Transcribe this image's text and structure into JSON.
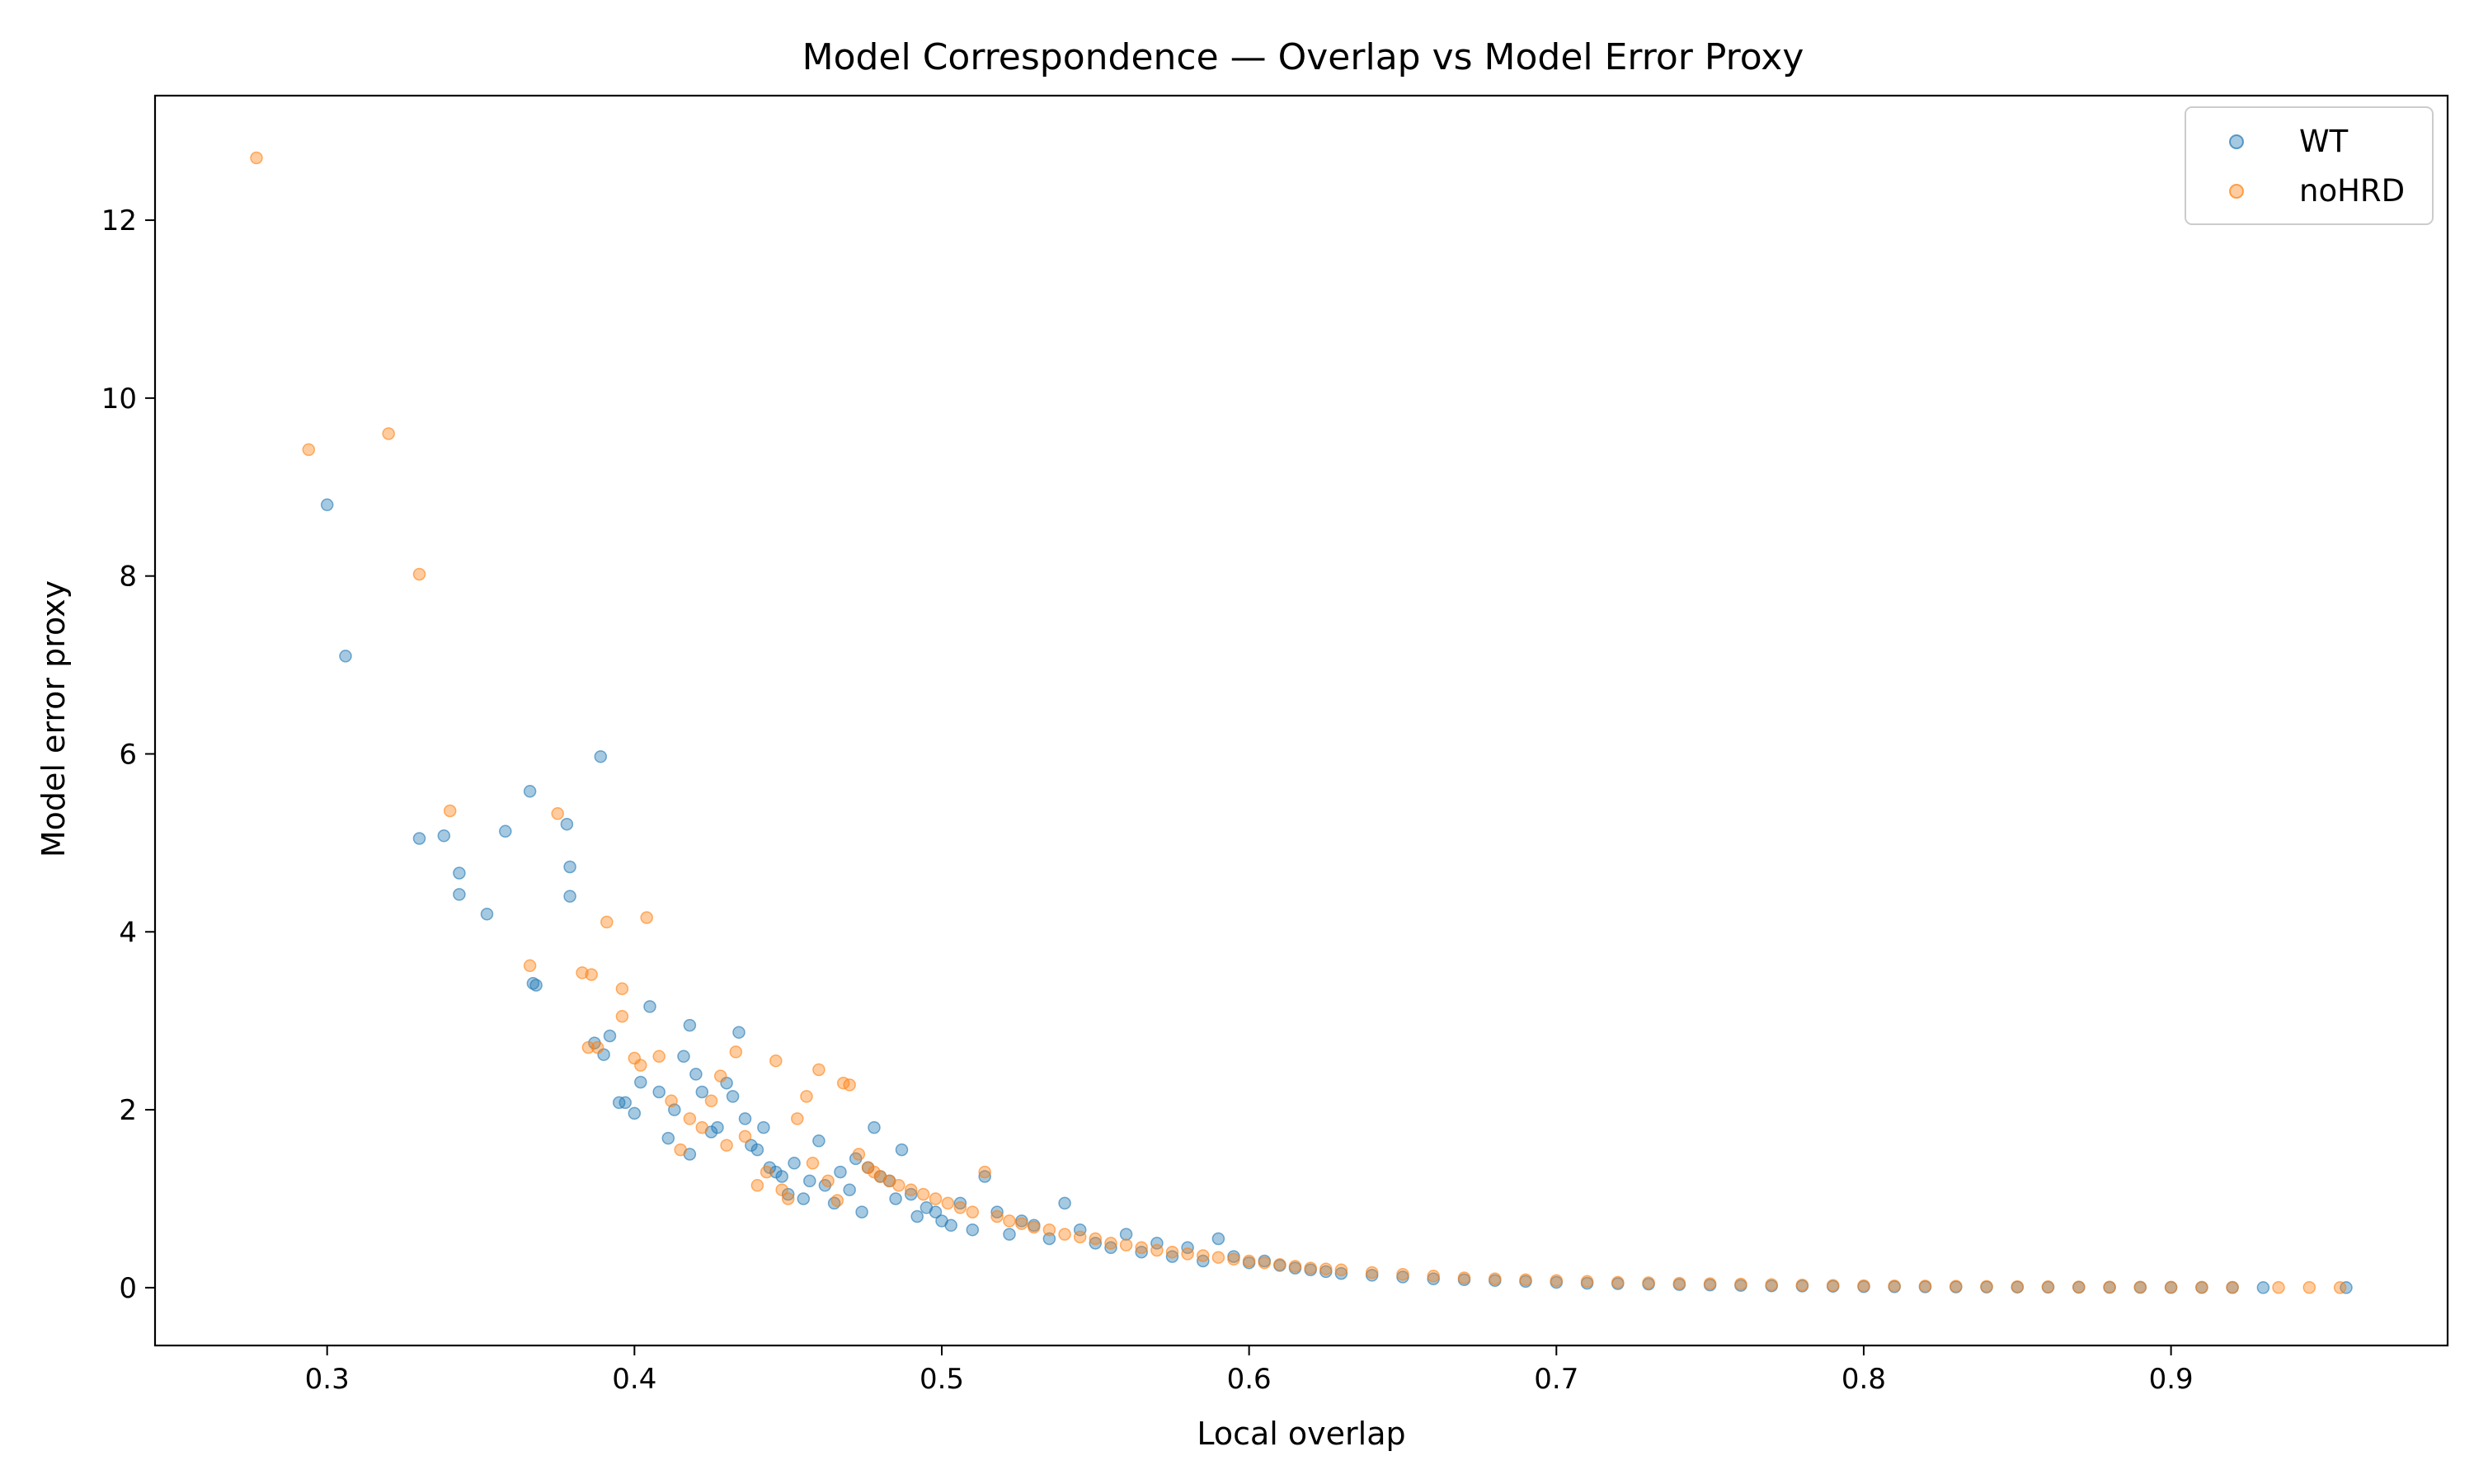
{
  "chart_data": {
    "type": "scatter",
    "title": "Model Correspondence — Overlap vs Model Error Proxy",
    "xlabel": "Local overlap",
    "ylabel": "Model error proxy",
    "xlim": [
      0.244,
      0.99
    ],
    "ylim": [
      -0.65,
      13.4
    ],
    "xticks": [
      0.3,
      0.4,
      0.5,
      0.6,
      0.7,
      0.8,
      0.9
    ],
    "yticks": [
      0,
      2,
      4,
      6,
      8,
      10,
      12
    ],
    "xtick_labels": [
      "0.3",
      "0.4",
      "0.5",
      "0.6",
      "0.7",
      "0.8",
      "0.9"
    ],
    "ytick_labels": [
      "0",
      "2",
      "4",
      "6",
      "8",
      "10",
      "12"
    ],
    "grid": false,
    "legend_position": "top-right",
    "series": [
      {
        "name": "WT",
        "color": "#1f77b4",
        "x": [
          0.3,
          0.306,
          0.33,
          0.338,
          0.343,
          0.343,
          0.352,
          0.358,
          0.366,
          0.367,
          0.368,
          0.378,
          0.379,
          0.379,
          0.389,
          0.39,
          0.387,
          0.392,
          0.395,
          0.397,
          0.4,
          0.402,
          0.405,
          0.408,
          0.411,
          0.413,
          0.416,
          0.418,
          0.418,
          0.42,
          0.422,
          0.425,
          0.427,
          0.43,
          0.432,
          0.434,
          0.436,
          0.438,
          0.44,
          0.442,
          0.444,
          0.446,
          0.448,
          0.45,
          0.452,
          0.455,
          0.457,
          0.46,
          0.462,
          0.465,
          0.467,
          0.47,
          0.472,
          0.474,
          0.476,
          0.478,
          0.48,
          0.483,
          0.485,
          0.487,
          0.49,
          0.492,
          0.495,
          0.498,
          0.5,
          0.503,
          0.506,
          0.51,
          0.514,
          0.518,
          0.522,
          0.526,
          0.53,
          0.535,
          0.54,
          0.545,
          0.55,
          0.555,
          0.56,
          0.565,
          0.57,
          0.575,
          0.58,
          0.585,
          0.59,
          0.595,
          0.6,
          0.605,
          0.61,
          0.615,
          0.62,
          0.625,
          0.63,
          0.64,
          0.65,
          0.66,
          0.67,
          0.68,
          0.69,
          0.7,
          0.71,
          0.72,
          0.73,
          0.74,
          0.75,
          0.76,
          0.77,
          0.78,
          0.79,
          0.8,
          0.81,
          0.82,
          0.83,
          0.84,
          0.85,
          0.86,
          0.87,
          0.88,
          0.89,
          0.9,
          0.91,
          0.92,
          0.93,
          0.957
        ],
        "y": [
          8.8,
          7.1,
          5.05,
          5.08,
          4.66,
          4.42,
          4.2,
          5.13,
          5.58,
          3.42,
          3.4,
          5.21,
          4.73,
          4.4,
          5.97,
          2.62,
          2.75,
          2.83,
          2.08,
          2.08,
          1.96,
          2.31,
          3.16,
          2.2,
          1.68,
          2.0,
          2.6,
          2.95,
          1.5,
          2.4,
          2.2,
          1.75,
          1.8,
          2.3,
          2.15,
          2.87,
          1.9,
          1.6,
          1.55,
          1.8,
          1.35,
          1.3,
          1.25,
          1.05,
          1.4,
          1.0,
          1.2,
          1.65,
          1.15,
          0.95,
          1.3,
          1.1,
          1.45,
          0.85,
          1.35,
          1.8,
          1.25,
          1.2,
          1.0,
          1.55,
          1.05,
          0.8,
          0.9,
          0.85,
          0.75,
          0.7,
          0.95,
          0.65,
          1.25,
          0.85,
          0.6,
          0.75,
          0.7,
          0.55,
          0.95,
          0.65,
          0.5,
          0.45,
          0.6,
          0.4,
          0.5,
          0.35,
          0.45,
          0.3,
          0.55,
          0.35,
          0.28,
          0.3,
          0.25,
          0.22,
          0.2,
          0.18,
          0.16,
          0.14,
          0.12,
          0.1,
          0.09,
          0.08,
          0.07,
          0.06,
          0.05,
          0.045,
          0.04,
          0.035,
          0.03,
          0.025,
          0.02,
          0.018,
          0.015,
          0.012,
          0.01,
          0.009,
          0.008,
          0.007,
          0.006,
          0.005,
          0.004,
          0.003,
          0.003,
          0.002,
          0.002,
          0.002,
          0.001,
          0.001
        ]
      },
      {
        "name": "noHRD",
        "color": "#ff7f0e",
        "x": [
          0.277,
          0.294,
          0.32,
          0.33,
          0.34,
          0.366,
          0.375,
          0.383,
          0.386,
          0.391,
          0.396,
          0.396,
          0.4,
          0.402,
          0.404,
          0.385,
          0.388,
          0.408,
          0.412,
          0.415,
          0.418,
          0.422,
          0.425,
          0.428,
          0.43,
          0.433,
          0.436,
          0.44,
          0.443,
          0.446,
          0.448,
          0.45,
          0.453,
          0.456,
          0.458,
          0.46,
          0.463,
          0.466,
          0.468,
          0.47,
          0.473,
          0.476,
          0.478,
          0.48,
          0.483,
          0.486,
          0.49,
          0.494,
          0.498,
          0.502,
          0.506,
          0.51,
          0.514,
          0.518,
          0.522,
          0.526,
          0.53,
          0.535,
          0.54,
          0.545,
          0.55,
          0.555,
          0.56,
          0.565,
          0.57,
          0.575,
          0.58,
          0.585,
          0.59,
          0.595,
          0.6,
          0.605,
          0.61,
          0.615,
          0.62,
          0.625,
          0.63,
          0.64,
          0.65,
          0.66,
          0.67,
          0.68,
          0.69,
          0.7,
          0.71,
          0.72,
          0.73,
          0.74,
          0.75,
          0.76,
          0.77,
          0.78,
          0.79,
          0.8,
          0.81,
          0.82,
          0.83,
          0.84,
          0.85,
          0.86,
          0.87,
          0.88,
          0.89,
          0.9,
          0.91,
          0.92,
          0.935,
          0.945,
          0.955
        ],
        "y": [
          12.7,
          9.42,
          9.6,
          8.02,
          5.36,
          3.62,
          5.33,
          3.54,
          3.52,
          4.11,
          3.36,
          3.05,
          2.58,
          2.5,
          4.16,
          2.7,
          2.7,
          2.6,
          2.1,
          1.55,
          1.9,
          1.8,
          2.1,
          2.38,
          1.6,
          2.65,
          1.7,
          1.15,
          1.3,
          2.55,
          1.1,
          1.0,
          1.9,
          2.15,
          1.4,
          2.45,
          1.2,
          0.98,
          2.3,
          2.28,
          1.5,
          1.35,
          1.3,
          1.25,
          1.2,
          1.15,
          1.1,
          1.05,
          1.0,
          0.95,
          0.9,
          0.85,
          1.3,
          0.8,
          0.75,
          0.72,
          0.68,
          0.65,
          0.6,
          0.57,
          0.55,
          0.5,
          0.48,
          0.45,
          0.42,
          0.4,
          0.38,
          0.36,
          0.34,
          0.32,
          0.3,
          0.28,
          0.26,
          0.24,
          0.22,
          0.21,
          0.2,
          0.17,
          0.15,
          0.13,
          0.11,
          0.1,
          0.09,
          0.08,
          0.07,
          0.06,
          0.055,
          0.05,
          0.045,
          0.04,
          0.035,
          0.03,
          0.026,
          0.022,
          0.02,
          0.018,
          0.016,
          0.014,
          0.012,
          0.01,
          0.008,
          0.007,
          0.006,
          0.005,
          0.004,
          0.003,
          0.002,
          0.002,
          0.001
        ]
      }
    ]
  }
}
